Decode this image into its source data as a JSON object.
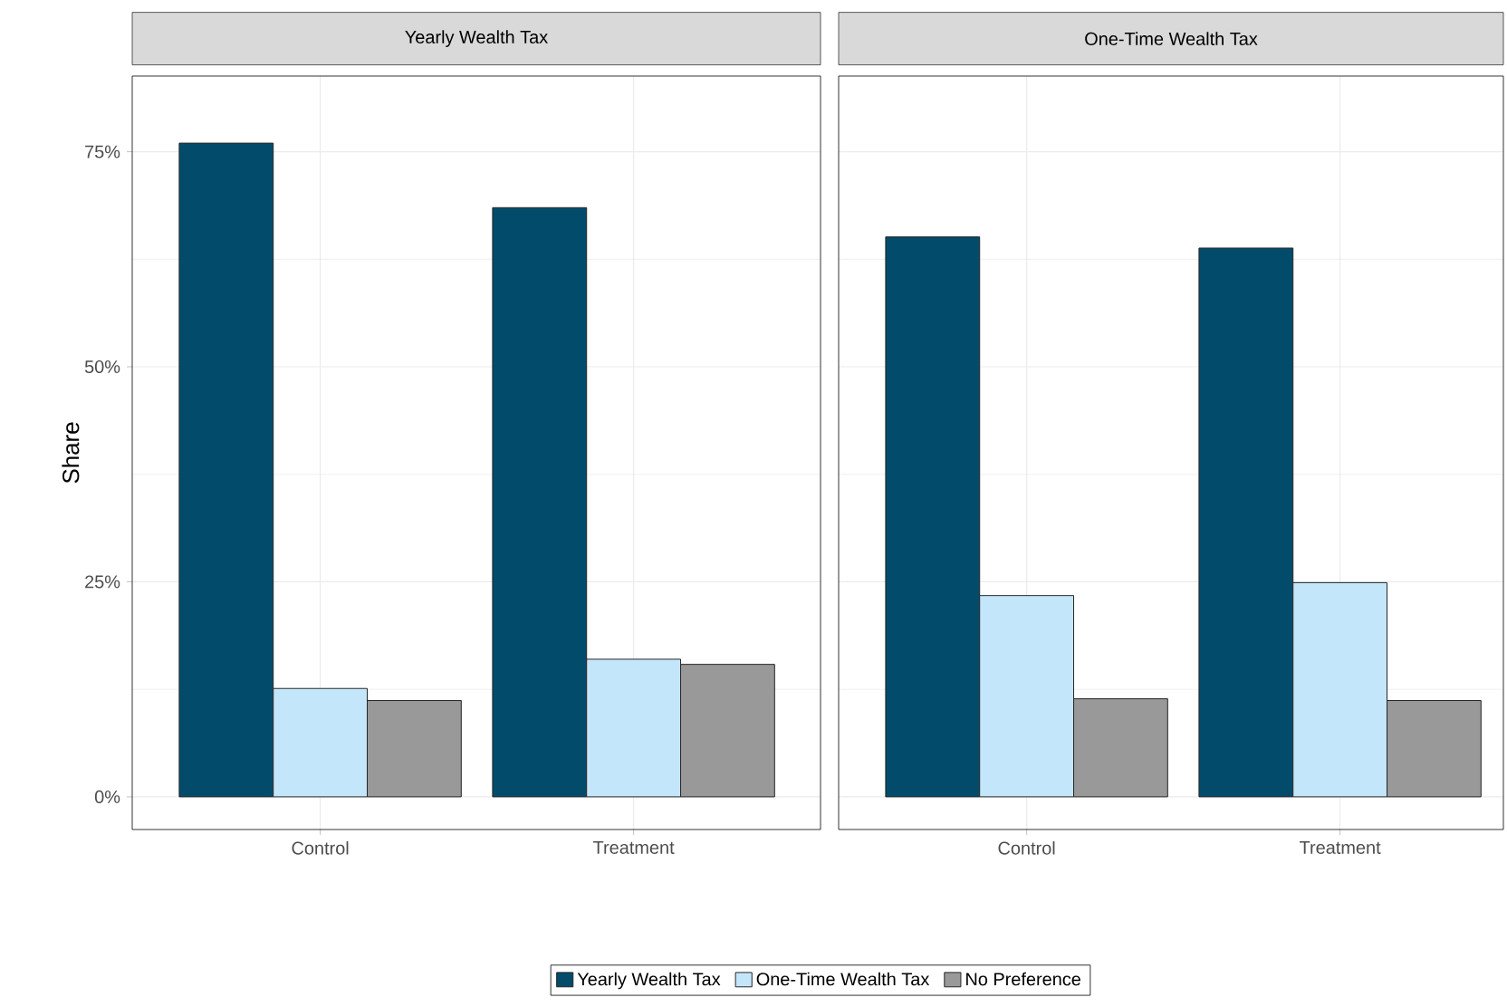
{
  "chart_data": [
    {
      "type": "bar",
      "title": "Yearly Wealth Tax",
      "ylabel": "Share",
      "categories": [
        "Control",
        "Treatment"
      ],
      "series": [
        {
          "name": "Yearly Wealth Tax",
          "color": "#034b6b",
          "values": [
            76.0,
            68.5
          ]
        },
        {
          "name": "One-Time Wealth Tax",
          "color": "#c4e6fb",
          "values": [
            12.6,
            16.0
          ]
        },
        {
          "name": "No Preference",
          "color": "#999999",
          "values": [
            11.2,
            15.4
          ]
        }
      ],
      "ylim": [
        -3.8,
        83.8
      ],
      "yticks": [
        {
          "value": 0,
          "label": "0%"
        },
        {
          "value": 25,
          "label": "25%"
        },
        {
          "value": 50,
          "label": "50%"
        },
        {
          "value": 75,
          "label": "75%"
        }
      ],
      "grid": true,
      "legend": "bottom"
    },
    {
      "type": "bar",
      "title": "One-Time Wealth Tax",
      "categories": [
        "Control",
        "Treatment"
      ],
      "series": [
        {
          "color": "#034b6b",
          "values": [
            65.1,
            63.8
          ]
        },
        {
          "color": "#c4e6fb",
          "values": [
            23.4,
            24.9
          ]
        },
        {
          "color": "#999999",
          "values": [
            11.4,
            11.2
          ]
        }
      ],
      "ylim": [
        -3.8,
        83.8
      ],
      "yticks": [
        0,
        25,
        50,
        75
      ],
      "grid": true,
      "tick_labels": "x"
    }
  ]
}
